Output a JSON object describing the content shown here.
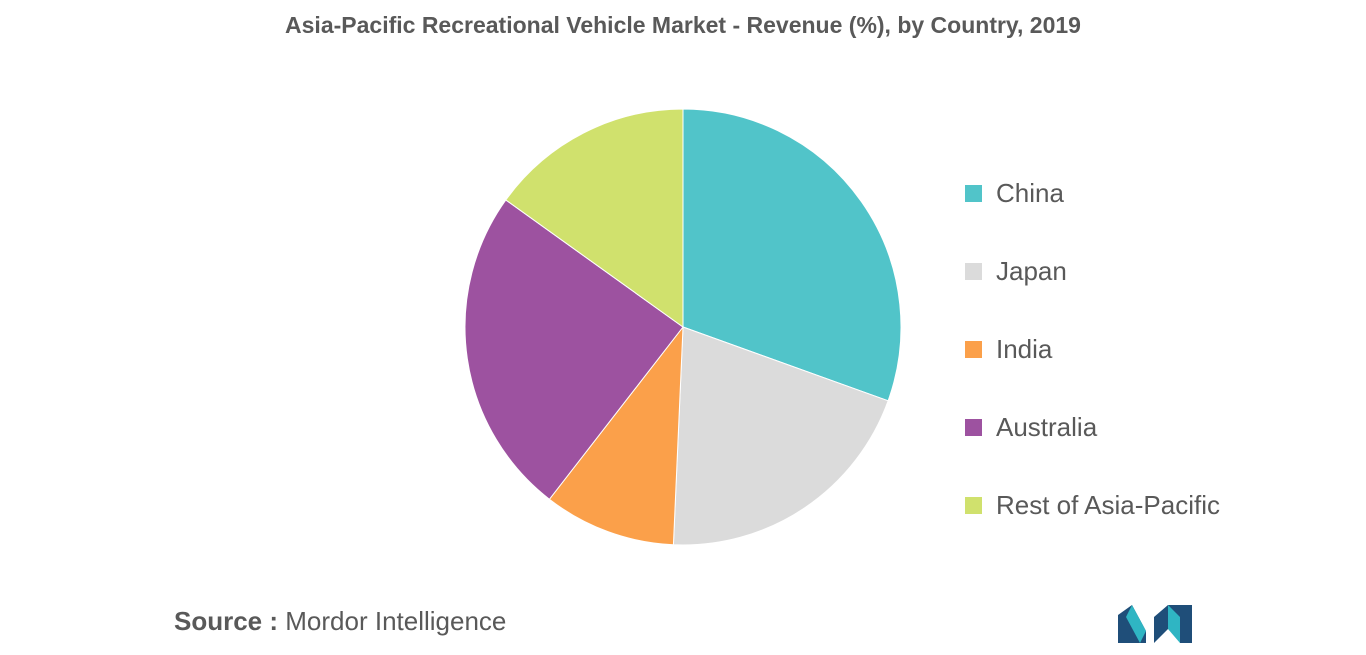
{
  "chart_data": {
    "type": "pie",
    "title": "Asia-Pacific Recreational Vehicle Market - Revenue (%), by Country, 2019",
    "categories": [
      "China",
      "Japan",
      "India",
      "Australia",
      "Rest of Asia-Pacific"
    ],
    "values": [
      30.5,
      20.2,
      9.8,
      24.4,
      15.1
    ],
    "colors": [
      "#51c4c9",
      "#dbdbdb",
      "#fba04a",
      "#9d52a0",
      "#d0e16d"
    ],
    "start_angle_deg": 0,
    "direction": "clockwise",
    "legend_position": "right"
  },
  "source": {
    "key": "Source :",
    "value": "Mordor Intelligence"
  },
  "logo": {
    "name": "mordor-intelligence-logo",
    "colors": [
      "#1f4e79",
      "#2fb5c3"
    ]
  }
}
